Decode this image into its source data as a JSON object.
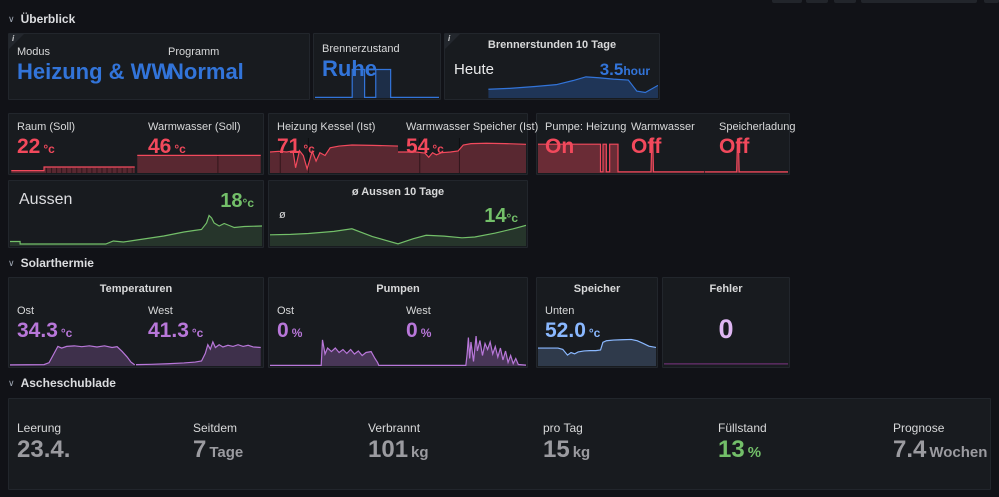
{
  "icons": {
    "section_chevron": "∨",
    "info": "i"
  },
  "colors": {
    "blue": "#3274D9",
    "red": "#F2495C",
    "green": "#73BF69",
    "purple": "#B877D9",
    "light_blue": "#8AB8FF",
    "light_purple": "#DEB6F2",
    "gray": "#9B9BA0",
    "label": "#D8D9DA"
  },
  "sections": {
    "ueberblick": {
      "title": "Überblick",
      "panels": {
        "modus": {
          "stats": {
            "modus": {
              "label": "Modus",
              "value": "Heizung & WW"
            },
            "programm": {
              "label": "Programm",
              "value": "Normal"
            }
          }
        },
        "brennerzustand": {
          "stats": {
            "zustand": {
              "label": "Brennerzustand",
              "value": "Ruhe"
            }
          }
        },
        "brennerstunden": {
          "title": "Brennerstunden 10 Tage",
          "stats": {
            "heute": {
              "label": "Heute",
              "value": "3.5",
              "unit": "hour"
            }
          }
        },
        "soll": {
          "stats": {
            "raum": {
              "label": "Raum (Soll)",
              "value": "22",
              "unit": "°c"
            },
            "warmwasser": {
              "label": "Warmwasser (Soll)",
              "value": "46",
              "unit": "°c"
            }
          }
        },
        "ist": {
          "stats": {
            "kessel": {
              "label": "Heizung Kessel (Ist)",
              "value": "71",
              "unit": "°c"
            },
            "speicher": {
              "label": "Warmwasser Speicher (Ist)",
              "value": "54",
              "unit": "°c"
            }
          }
        },
        "pumpen": {
          "stats": {
            "heizung": {
              "label": "Pumpe: Heizung",
              "value": "On"
            },
            "warmwasser": {
              "label": "Warmwasser",
              "value": "Off"
            },
            "speicherladung": {
              "label": "Speicherladung",
              "value": "Off"
            }
          }
        },
        "aussen": {
          "stats": {
            "aussen": {
              "label": "Aussen",
              "value": "18",
              "unit": "°c"
            }
          }
        },
        "aussen10": {
          "title": "ø Aussen 10 Tage",
          "stats": {
            "avg": {
              "label": "ø",
              "value": "14",
              "unit": "°c"
            }
          }
        }
      }
    },
    "solarthermie": {
      "title": "Solarthermie",
      "panels": {
        "temperaturen": {
          "title": "Temperaturen",
          "stats": {
            "ost": {
              "label": "Ost",
              "value": "34.3",
              "unit": "°c"
            },
            "west": {
              "label": "West",
              "value": "41.3",
              "unit": "°c"
            }
          }
        },
        "pumpen": {
          "title": "Pumpen",
          "stats": {
            "ost": {
              "label": "Ost",
              "value": "0",
              "unit": "%"
            },
            "west": {
              "label": "West",
              "value": "0",
              "unit": "%"
            }
          }
        },
        "speicher": {
          "title": "Speicher",
          "stats": {
            "unten": {
              "label": "Unten",
              "value": "52.0",
              "unit": "°c"
            }
          }
        },
        "fehler": {
          "title": "Fehler",
          "stats": {
            "anzahl": {
              "value": "0"
            }
          }
        }
      }
    },
    "ascheschublade": {
      "title": "Ascheschublade",
      "panels": {
        "uebersicht": {
          "stats": {
            "leerung": {
              "label": "Leerung",
              "value": "23.4."
            },
            "seitdem": {
              "label": "Seitdem",
              "value": "7",
              "unit": "Tage"
            },
            "verbrannt": {
              "label": "Verbrannt",
              "value": "101",
              "unit": "kg"
            },
            "pro_tag": {
              "label": "pro Tag",
              "value": "15",
              "unit": "kg"
            },
            "fuellstand": {
              "label": "Füllstand",
              "value": "13",
              "unit": "%"
            },
            "prognose": {
              "label": "Prognose",
              "value": "7.4",
              "unit": "Wochen"
            }
          }
        }
      }
    }
  },
  "sparklines": {
    "brennerzustand": {
      "color": "#3274D9",
      "fill": 0.22,
      "points": [
        [
          0,
          2
        ],
        [
          30,
          2
        ],
        [
          30,
          95
        ],
        [
          40,
          95
        ],
        [
          40,
          2
        ],
        [
          49,
          2
        ],
        [
          49,
          95
        ],
        [
          61,
          95
        ],
        [
          61,
          2
        ],
        [
          100,
          2
        ]
      ]
    },
    "brennerstunden": {
      "color": "#3274D9",
      "fill": 0.3,
      "points": [
        [
          20,
          38
        ],
        [
          30,
          42
        ],
        [
          42,
          50
        ],
        [
          52,
          58
        ],
        [
          60,
          76
        ],
        [
          66,
          92
        ],
        [
          72,
          88
        ],
        [
          79,
          82
        ],
        [
          86,
          78
        ],
        [
          90,
          30
        ],
        [
          94,
          24
        ],
        [
          100,
          55
        ]
      ]
    },
    "raum_soll": {
      "color": "#F2495C",
      "fill": 0.3,
      "points": [
        [
          1,
          12
        ],
        [
          27,
          12
        ],
        [
          27,
          30
        ],
        [
          99,
          30
        ]
      ],
      "grid": [
        29,
        33,
        37,
        41,
        45,
        49,
        53,
        57,
        61,
        65,
        69,
        73,
        77,
        81,
        85,
        89,
        93,
        97
      ],
      "gridh": 26
    },
    "warmwasser_soll": {
      "color": "#F2495C",
      "fill": 0.3,
      "points": [
        [
          1,
          88
        ],
        [
          99,
          88
        ]
      ],
      "grid": [
        65
      ],
      "gridh": 95
    },
    "kessel_ist": {
      "color": "#F2495C",
      "fill": 0.3,
      "points": [
        [
          0,
          60
        ],
        [
          7,
          62
        ],
        [
          13,
          60
        ],
        [
          18,
          63
        ],
        [
          20,
          15
        ],
        [
          23,
          64
        ],
        [
          26,
          50
        ],
        [
          29,
          12
        ],
        [
          33,
          62
        ],
        [
          36,
          34
        ],
        [
          39,
          58
        ],
        [
          43,
          50
        ],
        [
          47,
          72
        ],
        [
          54,
          77
        ],
        [
          64,
          80
        ],
        [
          80,
          79
        ],
        [
          100,
          77
        ]
      ],
      "grid": [
        8,
        30
      ],
      "gridh": 100
    },
    "speicher_ist": {
      "color": "#F2495C",
      "fill": 0.3,
      "points": [
        [
          0,
          60
        ],
        [
          14,
          60
        ],
        [
          21,
          57
        ],
        [
          24,
          45
        ],
        [
          27,
          58
        ],
        [
          30,
          52
        ],
        [
          34,
          58
        ],
        [
          41,
          60
        ],
        [
          47,
          63
        ],
        [
          51,
          80
        ],
        [
          57,
          84
        ],
        [
          69,
          85
        ],
        [
          84,
          84
        ],
        [
          100,
          82
        ]
      ],
      "grid": [
        17,
        48
      ],
      "gridh": 100
    },
    "pumpe_heizung": {
      "color": "#F2495C",
      "fill": 0.38,
      "points": [
        [
          0,
          72
        ],
        [
          75,
          72
        ],
        [
          75,
          3
        ],
        [
          78,
          3
        ],
        [
          78,
          72
        ],
        [
          82,
          72
        ],
        [
          82,
          3
        ],
        [
          86,
          3
        ],
        [
          86,
          72
        ],
        [
          96,
          72
        ],
        [
          96,
          3
        ],
        [
          100,
          3
        ]
      ]
    },
    "ww_pumpe": {
      "color": "#F2495C",
      "fill": 0.38,
      "points": [
        [
          0,
          3
        ],
        [
          36,
          3
        ],
        [
          37,
          85
        ],
        [
          38,
          85
        ],
        [
          39,
          3
        ],
        [
          100,
          3
        ]
      ]
    },
    "speicherladung": {
      "color": "#F2495C",
      "fill": 0.38,
      "points": [
        [
          0,
          3
        ],
        [
          38,
          3
        ],
        [
          39,
          85
        ],
        [
          40,
          85
        ],
        [
          41,
          3
        ],
        [
          100,
          3
        ]
      ]
    },
    "aussen": {
      "color": "#73BF69",
      "fill": 0.16,
      "points": [
        [
          0,
          9
        ],
        [
          4,
          9
        ],
        [
          4,
          4
        ],
        [
          38,
          4
        ],
        [
          41,
          10
        ],
        [
          45,
          8
        ],
        [
          49,
          11
        ],
        [
          53,
          14
        ],
        [
          57,
          17
        ],
        [
          61,
          20
        ],
        [
          65,
          24
        ],
        [
          69,
          28
        ],
        [
          73,
          31
        ],
        [
          76,
          33
        ],
        [
          78,
          46
        ],
        [
          79,
          61
        ],
        [
          80,
          56
        ],
        [
          81,
          46
        ],
        [
          83,
          40
        ],
        [
          85,
          45
        ],
        [
          87,
          41
        ],
        [
          89,
          37
        ],
        [
          93,
          39
        ],
        [
          100,
          40
        ]
      ]
    },
    "aussen10": {
      "color": "#73BF69",
      "fill": 0.16,
      "points": [
        [
          0,
          26
        ],
        [
          8,
          27
        ],
        [
          15,
          29
        ],
        [
          25,
          34
        ],
        [
          32,
          40
        ],
        [
          40,
          22
        ],
        [
          50,
          5
        ],
        [
          56,
          17
        ],
        [
          61,
          25
        ],
        [
          68,
          23
        ],
        [
          75,
          19
        ],
        [
          80,
          21
        ],
        [
          88,
          30
        ],
        [
          95,
          40
        ],
        [
          100,
          48
        ]
      ]
    },
    "temp_ost": {
      "color": "#B877D9",
      "fill": 0.24,
      "points": [
        [
          0,
          4
        ],
        [
          27,
          5
        ],
        [
          31,
          12
        ],
        [
          35,
          45
        ],
        [
          38,
          70
        ],
        [
          41,
          64
        ],
        [
          45,
          70
        ],
        [
          51,
          72
        ],
        [
          57,
          69
        ],
        [
          63,
          72
        ],
        [
          69,
          68
        ],
        [
          75,
          72
        ],
        [
          81,
          66
        ],
        [
          85,
          69
        ],
        [
          89,
          52
        ],
        [
          93,
          32
        ],
        [
          96,
          14
        ],
        [
          99,
          4
        ]
      ]
    },
    "temp_west": {
      "color": "#B877D9",
      "fill": 0.24,
      "points": [
        [
          0,
          5
        ],
        [
          12,
          6
        ],
        [
          25,
          8
        ],
        [
          38,
          11
        ],
        [
          47,
          14
        ],
        [
          52,
          18
        ],
        [
          55,
          45
        ],
        [
          57,
          76
        ],
        [
          59,
          60
        ],
        [
          61,
          86
        ],
        [
          63,
          66
        ],
        [
          66,
          76
        ],
        [
          69,
          68
        ],
        [
          73,
          74
        ],
        [
          77,
          70
        ],
        [
          81,
          76
        ],
        [
          85,
          70
        ],
        [
          89,
          74
        ],
        [
          93,
          68
        ],
        [
          99,
          66
        ]
      ]
    },
    "pumpen_ost": {
      "color": "#B877D9",
      "fill": 0.3,
      "points": [
        [
          0,
          2
        ],
        [
          40,
          2
        ],
        [
          41,
          87
        ],
        [
          43,
          40
        ],
        [
          45,
          60
        ],
        [
          48,
          48
        ],
        [
          51,
          60
        ],
        [
          54,
          45
        ],
        [
          57,
          55
        ],
        [
          60,
          42
        ],
        [
          63,
          55
        ],
        [
          66,
          40
        ],
        [
          69,
          50
        ],
        [
          72,
          35
        ],
        [
          75,
          45
        ],
        [
          79,
          48
        ],
        [
          82,
          25
        ],
        [
          84,
          12
        ],
        [
          85,
          2
        ],
        [
          100,
          2
        ]
      ]
    },
    "pumpen_west": {
      "color": "#B877D9",
      "fill": 0.3,
      "points": [
        [
          0,
          2
        ],
        [
          53,
          2
        ],
        [
          54,
          40
        ],
        [
          55,
          95
        ],
        [
          56,
          25
        ],
        [
          57,
          80
        ],
        [
          59,
          15
        ],
        [
          61,
          100
        ],
        [
          62,
          50
        ],
        [
          64,
          85
        ],
        [
          66,
          35
        ],
        [
          68,
          75
        ],
        [
          70,
          55
        ],
        [
          72,
          80
        ],
        [
          74,
          40
        ],
        [
          76,
          65
        ],
        [
          78,
          30
        ],
        [
          80,
          60
        ],
        [
          82,
          20
        ],
        [
          84,
          50
        ],
        [
          86,
          12
        ],
        [
          88,
          35
        ],
        [
          90,
          8
        ],
        [
          92,
          25
        ],
        [
          94,
          5
        ],
        [
          100,
          3
        ]
      ]
    },
    "speicher_unten": {
      "color": "#8AB8FF",
      "fill": 0.2,
      "points": [
        [
          0,
          56
        ],
        [
          17,
          56
        ],
        [
          21,
          52
        ],
        [
          25,
          34
        ],
        [
          28,
          42
        ],
        [
          31,
          38
        ],
        [
          34,
          44
        ],
        [
          39,
          47
        ],
        [
          44,
          48
        ],
        [
          49,
          48
        ],
        [
          53,
          50
        ],
        [
          55,
          74
        ],
        [
          58,
          79
        ],
        [
          64,
          81
        ],
        [
          71,
          82
        ],
        [
          79,
          83
        ],
        [
          84,
          79
        ],
        [
          89,
          71
        ],
        [
          94,
          62
        ],
        [
          100,
          58
        ]
      ]
    },
    "fehler": {
      "color": "#6A3070",
      "fill": 0,
      "points": [
        [
          0,
          35
        ],
        [
          100,
          35
        ]
      ]
    }
  }
}
